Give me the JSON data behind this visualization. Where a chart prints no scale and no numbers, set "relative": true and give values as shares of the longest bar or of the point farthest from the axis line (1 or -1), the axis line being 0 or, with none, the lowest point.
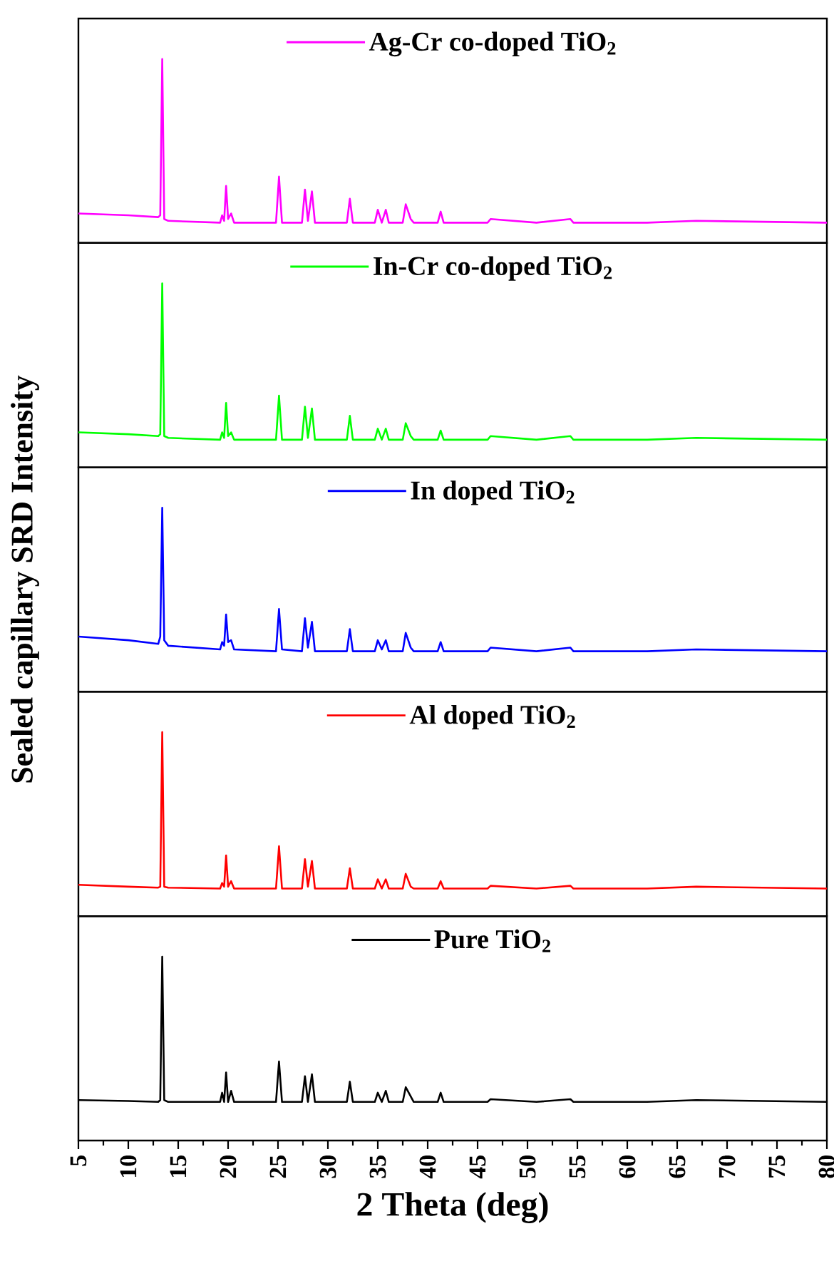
{
  "chart_data": [
    {
      "type": "line",
      "relative": true,
      "legend": "top",
      "tick_labels": false,
      "xlim": [
        5,
        80
      ],
      "x": [
        5,
        10,
        13.0,
        13.2,
        13.4,
        13.6,
        14,
        19.2,
        19.4,
        19.6,
        19.8,
        20.0,
        20.3,
        20.6,
        24.8,
        25.1,
        25.4,
        27.4,
        27.7,
        28.0,
        28.4,
        28.7,
        31.9,
        32.2,
        32.5,
        34.7,
        35.0,
        35.4,
        35.8,
        36.1,
        37.5,
        37.8,
        38.3,
        38.6,
        41.0,
        41.3,
        41.6,
        46.0,
        46.3,
        50.9,
        54.3,
        54.6,
        62,
        66.9,
        80
      ],
      "series": [
        {
          "name": "Ag-Cr co-doped TiO$_{2}$",
          "color": "#ff00ff",
          "values": [
            0.16,
            0.15,
            0.14,
            0.15,
            1.0,
            0.13,
            0.12,
            0.11,
            0.15,
            0.12,
            0.31,
            0.13,
            0.16,
            0.11,
            0.11,
            0.36,
            0.11,
            0.11,
            0.29,
            0.12,
            0.28,
            0.11,
            0.11,
            0.24,
            0.11,
            0.11,
            0.18,
            0.11,
            0.18,
            0.11,
            0.11,
            0.21,
            0.13,
            0.11,
            0.11,
            0.17,
            0.11,
            0.11,
            0.13,
            0.11,
            0.13,
            0.11,
            0.11,
            0.12,
            0.11
          ]
        }
      ]
    },
    {
      "type": "line",
      "relative": true,
      "legend": "top",
      "tick_labels": false,
      "xlim": [
        5,
        80
      ],
      "x": [
        5,
        10,
        13.0,
        13.2,
        13.4,
        13.6,
        14,
        19.2,
        19.4,
        19.6,
        19.8,
        20.0,
        20.3,
        20.6,
        24.8,
        25.1,
        25.4,
        27.4,
        27.7,
        28.0,
        28.4,
        28.7,
        31.9,
        32.2,
        32.5,
        34.7,
        35.0,
        35.4,
        35.8,
        36.1,
        37.5,
        37.8,
        38.3,
        38.6,
        41.0,
        41.3,
        41.6,
        46.0,
        46.3,
        50.9,
        54.3,
        54.6,
        62,
        66.9,
        80
      ],
      "series": [
        {
          "name": "In-Cr co-doped TiO$_{2}$",
          "color": "#00ff00",
          "values": [
            0.19,
            0.18,
            0.17,
            0.18,
            1.0,
            0.17,
            0.16,
            0.15,
            0.19,
            0.16,
            0.35,
            0.17,
            0.19,
            0.15,
            0.15,
            0.39,
            0.15,
            0.15,
            0.33,
            0.16,
            0.32,
            0.15,
            0.15,
            0.28,
            0.15,
            0.15,
            0.21,
            0.15,
            0.21,
            0.15,
            0.15,
            0.24,
            0.17,
            0.15,
            0.15,
            0.2,
            0.15,
            0.15,
            0.17,
            0.15,
            0.17,
            0.15,
            0.15,
            0.16,
            0.15
          ]
        }
      ]
    },
    {
      "type": "line",
      "relative": true,
      "legend": "top",
      "tick_labels": false,
      "xlim": [
        5,
        80
      ],
      "ylabel": "Sealed capillary SRD Intensity",
      "x": [
        5,
        10,
        13.0,
        13.2,
        13.4,
        13.6,
        14,
        19.2,
        19.4,
        19.6,
        19.8,
        20.0,
        20.3,
        20.6,
        24.8,
        25.1,
        25.4,
        27.4,
        27.7,
        28.0,
        28.4,
        28.7,
        31.9,
        32.2,
        32.5,
        34.7,
        35.0,
        35.4,
        35.8,
        36.1,
        37.5,
        37.8,
        38.3,
        38.6,
        41.0,
        41.3,
        41.6,
        46.0,
        46.3,
        50.9,
        54.3,
        54.6,
        62,
        66.9,
        80
      ],
      "series": [
        {
          "name": "In doped TiO$_{2}$",
          "color": "#0000ff",
          "values": [
            0.3,
            0.28,
            0.26,
            0.3,
            1.0,
            0.28,
            0.25,
            0.23,
            0.27,
            0.25,
            0.42,
            0.27,
            0.28,
            0.23,
            0.22,
            0.45,
            0.23,
            0.22,
            0.4,
            0.24,
            0.38,
            0.22,
            0.22,
            0.34,
            0.22,
            0.22,
            0.28,
            0.23,
            0.28,
            0.22,
            0.22,
            0.32,
            0.24,
            0.22,
            0.22,
            0.27,
            0.22,
            0.22,
            0.24,
            0.22,
            0.24,
            0.22,
            0.22,
            0.23,
            0.22
          ]
        }
      ]
    },
    {
      "type": "line",
      "relative": true,
      "legend": "top",
      "tick_labels": false,
      "xlim": [
        5,
        80
      ],
      "x": [
        5,
        10,
        13.0,
        13.2,
        13.4,
        13.6,
        14,
        19.2,
        19.4,
        19.6,
        19.8,
        20.0,
        20.3,
        20.6,
        24.8,
        25.1,
        25.4,
        27.4,
        27.7,
        28.0,
        28.4,
        28.7,
        31.9,
        32.2,
        32.5,
        34.7,
        35.0,
        35.4,
        35.8,
        36.1,
        37.5,
        37.8,
        38.3,
        38.6,
        41.0,
        41.3,
        41.6,
        46.0,
        46.3,
        50.9,
        54.3,
        54.6,
        62,
        66.9,
        80
      ],
      "series": [
        {
          "name": "Al doped TiO$_{2}$",
          "color": "#ff0000",
          "values": [
            0.17,
            0.16,
            0.155,
            0.16,
            1.0,
            0.16,
            0.155,
            0.15,
            0.18,
            0.16,
            0.33,
            0.16,
            0.19,
            0.15,
            0.15,
            0.38,
            0.15,
            0.15,
            0.31,
            0.16,
            0.3,
            0.15,
            0.15,
            0.26,
            0.15,
            0.15,
            0.2,
            0.15,
            0.2,
            0.15,
            0.15,
            0.23,
            0.16,
            0.15,
            0.15,
            0.19,
            0.15,
            0.15,
            0.165,
            0.15,
            0.165,
            0.15,
            0.15,
            0.16,
            0.15
          ]
        }
      ]
    },
    {
      "type": "line",
      "relative": true,
      "legend": "top",
      "tick_labels": "x",
      "xlim": [
        5,
        80
      ],
      "xlabel": "2 Theta (deg)",
      "xticks": [
        5,
        10,
        15,
        20,
        25,
        30,
        35,
        40,
        45,
        50,
        55,
        60,
        65,
        70,
        75,
        80
      ],
      "x": [
        5,
        10,
        13.0,
        13.2,
        13.4,
        13.6,
        14,
        19.2,
        19.4,
        19.6,
        19.8,
        20.0,
        20.3,
        20.6,
        24.8,
        25.1,
        25.4,
        27.4,
        27.7,
        28.0,
        28.4,
        28.7,
        31.9,
        32.2,
        32.5,
        34.7,
        35.0,
        35.4,
        35.8,
        36.1,
        37.5,
        37.8,
        38.3,
        38.6,
        41.0,
        41.3,
        41.6,
        46.0,
        46.3,
        50.9,
        54.3,
        54.6,
        62,
        66.9,
        80
      ],
      "series": [
        {
          "name": "Pure TiO$_{2}$",
          "color": "#000000",
          "values": [
            0.22,
            0.215,
            0.21,
            0.22,
            1.0,
            0.22,
            0.21,
            0.21,
            0.26,
            0.21,
            0.37,
            0.21,
            0.27,
            0.21,
            0.21,
            0.43,
            0.21,
            0.21,
            0.35,
            0.21,
            0.36,
            0.21,
            0.21,
            0.32,
            0.21,
            0.21,
            0.26,
            0.21,
            0.27,
            0.21,
            0.21,
            0.29,
            0.24,
            0.21,
            0.21,
            0.26,
            0.21,
            0.21,
            0.225,
            0.21,
            0.225,
            0.21,
            0.21,
            0.22,
            0.21
          ]
        }
      ]
    }
  ]
}
